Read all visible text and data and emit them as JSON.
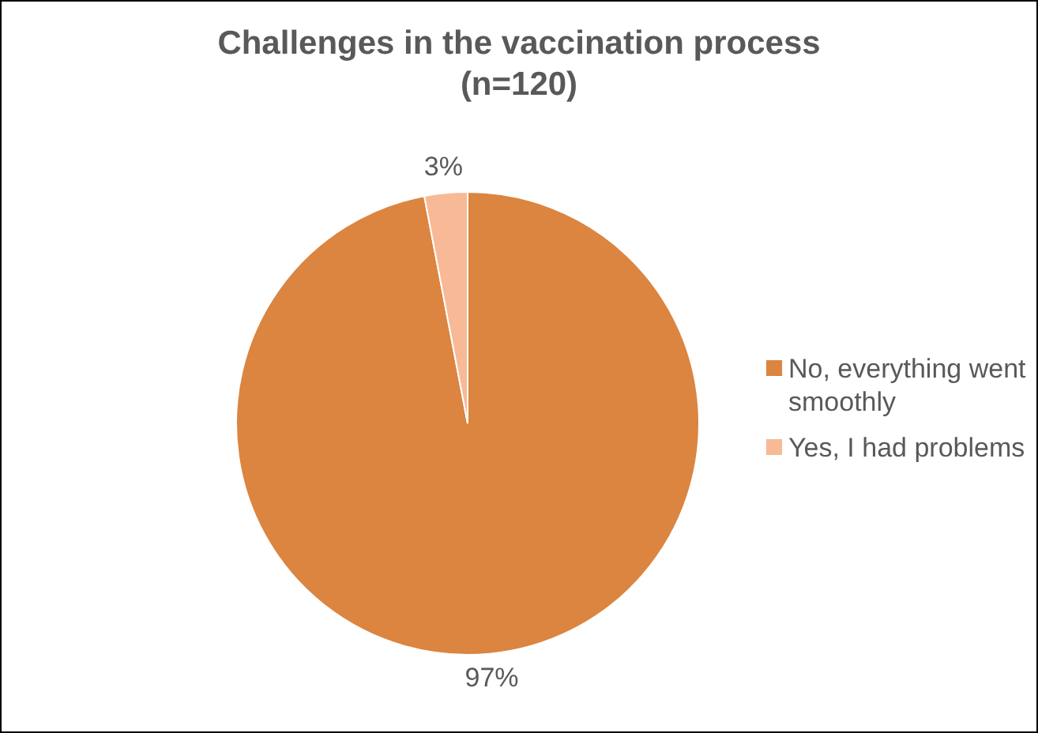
{
  "chart_data": {
    "type": "pie",
    "title": "Challenges in the vaccination process (n=120)",
    "categories": [
      "No, everything went smoothly",
      "Yes, I had problems"
    ],
    "values": [
      97,
      3
    ],
    "colors": [
      "#db8540",
      "#f8b996"
    ],
    "value_labels": [
      "97%",
      "3%"
    ],
    "legend": "right"
  }
}
